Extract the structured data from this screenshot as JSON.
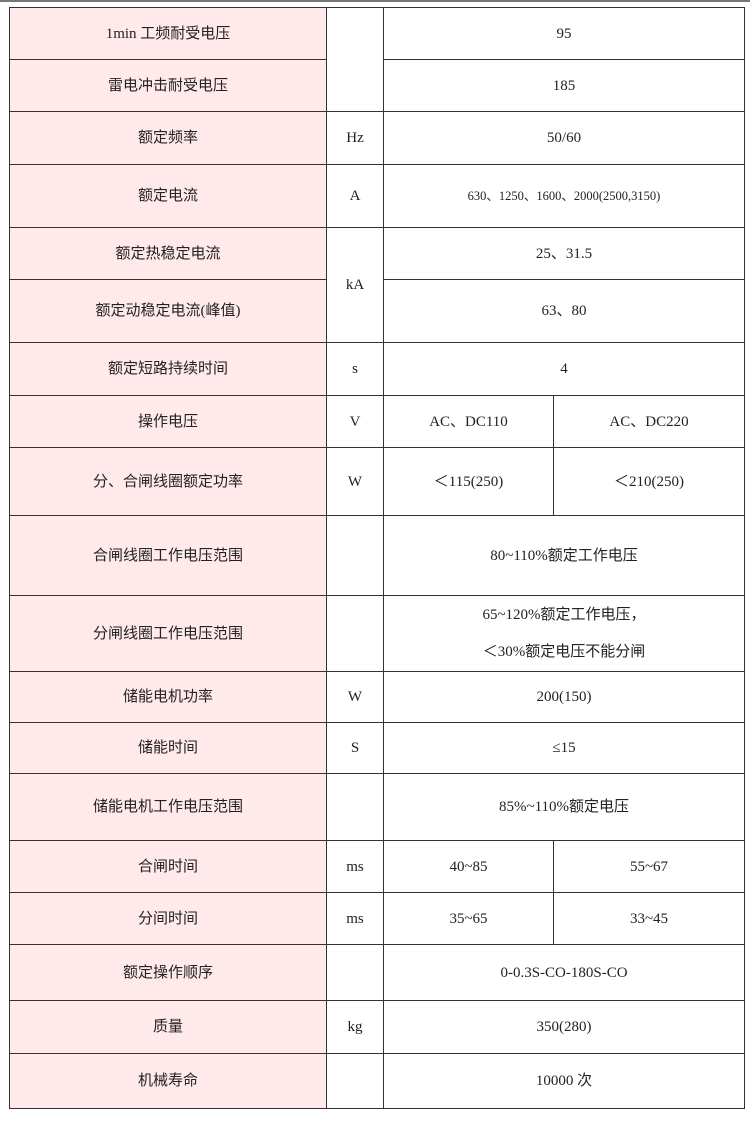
{
  "colors": {
    "label_bg": "#ffe9ea",
    "border": "#333333"
  },
  "rows": [
    {
      "name": "1min 工频耐受电压",
      "unit": "",
      "value": "95"
    },
    {
      "name": "雷电冲击耐受电压",
      "value": "185"
    },
    {
      "name": "额定频率",
      "unit": "Hz",
      "value": "50/60"
    },
    {
      "name": "额定电流",
      "unit": "A",
      "value": "630、1250、1600、2000(2500,3150)"
    },
    {
      "name": "额定热稳定电流",
      "unit": "kA",
      "value": "25、31.5"
    },
    {
      "name": "额定动稳定电流(峰值)",
      "value": "63、80"
    },
    {
      "name": "额定短路持续时间",
      "unit": "s",
      "value": "4"
    },
    {
      "name": "操作电压",
      "unit": "V",
      "value_a": "AC、DC110",
      "value_b": "AC、DC220"
    },
    {
      "name": "分、合闸线圈额定功率",
      "unit": "W",
      "value_a": "＜115(250)",
      "value_b": "＜210(250)"
    },
    {
      "name": "合闸线圈工作电压范围",
      "unit": "",
      "value": "80~110%额定工作电压"
    },
    {
      "name": "分闸线圈工作电压范围",
      "unit": "",
      "value_line1": "65~120%额定工作电压，",
      "value_line2": "＜30%额定电压不能分闸"
    },
    {
      "name": "储能电机功率",
      "unit": "W",
      "value": "200(150)"
    },
    {
      "name": "储能时间",
      "unit": "S",
      "value": "≤15"
    },
    {
      "name": "储能电机工作电压范围",
      "unit": "",
      "value": "85%~110%额定电压"
    },
    {
      "name": "合闸时间",
      "unit": "ms",
      "value_a": "40~85",
      "value_b": "55~67"
    },
    {
      "name": "分间时间",
      "unit": "ms",
      "value_a": "35~65",
      "value_b": "33~45"
    },
    {
      "name": "额定操作顺序",
      "unit": "",
      "value": "0-0.3S-CO-180S-CO"
    },
    {
      "name": "质量",
      "unit": "kg",
      "value": "350(280)"
    },
    {
      "name": "机械寿命",
      "unit": "",
      "value": "10000 次"
    }
  ]
}
